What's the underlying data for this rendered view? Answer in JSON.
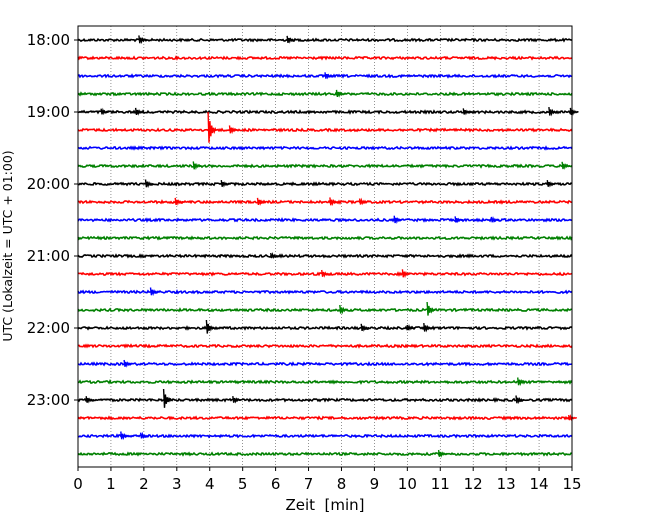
{
  "chart_data": {
    "type": "line",
    "title": "",
    "xlabel": "Zeit  [min]",
    "ylabel": "UTC (Lokalzeit = UTC + 01:00)",
    "xlim": [
      0,
      15
    ],
    "x_ticks": [
      "0",
      "1",
      "2",
      "3",
      "4",
      "5",
      "6",
      "7",
      "8",
      "9",
      "10",
      "11",
      "12",
      "13",
      "14",
      "15"
    ],
    "y_ticks": [
      "18:00",
      "19:00",
      "20:00",
      "21:00",
      "22:00",
      "23:00"
    ],
    "grid": "vertical dotted lines at each minute",
    "colors": [
      "#000000",
      "#ff0000",
      "#0000ff",
      "#008000"
    ],
    "traces": [
      {
        "start": "18:00",
        "color": "#000000",
        "events": [
          1.85,
          6.35
        ]
      },
      {
        "start": "18:15",
        "color": "#ff0000",
        "events": []
      },
      {
        "start": "18:30",
        "color": "#0000ff",
        "events": [
          7.5
        ]
      },
      {
        "start": "18:45",
        "color": "#008000",
        "events": [
          7.85
        ]
      },
      {
        "start": "19:00",
        "color": "#000000",
        "events": [
          0.7,
          1.75,
          11.7,
          14.3,
          14.95
        ]
      },
      {
        "start": "19:15",
        "color": "#ff0000",
        "events": [
          3.95,
          4.6
        ]
      },
      {
        "start": "19:30",
        "color": "#0000ff",
        "events": []
      },
      {
        "start": "19:45",
        "color": "#008000",
        "events": [
          3.5,
          14.7
        ]
      },
      {
        "start": "20:00",
        "color": "#000000",
        "events": [
          2.05,
          4.35,
          14.25
        ]
      },
      {
        "start": "20:15",
        "color": "#ff0000",
        "events": [
          2.95,
          5.45,
          7.65,
          8.55
        ]
      },
      {
        "start": "20:30",
        "color": "#0000ff",
        "events": [
          9.6,
          11.45,
          12.55
        ]
      },
      {
        "start": "20:45",
        "color": "#008000",
        "events": []
      },
      {
        "start": "21:00",
        "color": "#000000",
        "events": [
          5.85
        ]
      },
      {
        "start": "21:15",
        "color": "#ff0000",
        "events": [
          7.4,
          9.85
        ]
      },
      {
        "start": "21:30",
        "color": "#0000ff",
        "events": [
          2.2
        ]
      },
      {
        "start": "21:45",
        "color": "#008000",
        "events": [
          7.95,
          10.6
        ]
      },
      {
        "start": "22:00",
        "color": "#000000",
        "events": [
          3.9,
          8.6,
          10.0,
          10.5
        ]
      },
      {
        "start": "22:15",
        "color": "#ff0000",
        "events": []
      },
      {
        "start": "22:30",
        "color": "#0000ff",
        "events": [
          1.4
        ]
      },
      {
        "start": "22:45",
        "color": "#008000",
        "events": [
          13.35
        ]
      },
      {
        "start": "23:00",
        "color": "#000000",
        "events": [
          0.25,
          2.6,
          4.7,
          13.3
        ]
      },
      {
        "start": "23:15",
        "color": "#ff0000",
        "events": [
          14.9
        ]
      },
      {
        "start": "23:30",
        "color": "#0000ff",
        "events": [
          1.3,
          1.9
        ]
      },
      {
        "start": "23:45",
        "color": "#008000",
        "events": [
          10.95
        ]
      }
    ]
  }
}
